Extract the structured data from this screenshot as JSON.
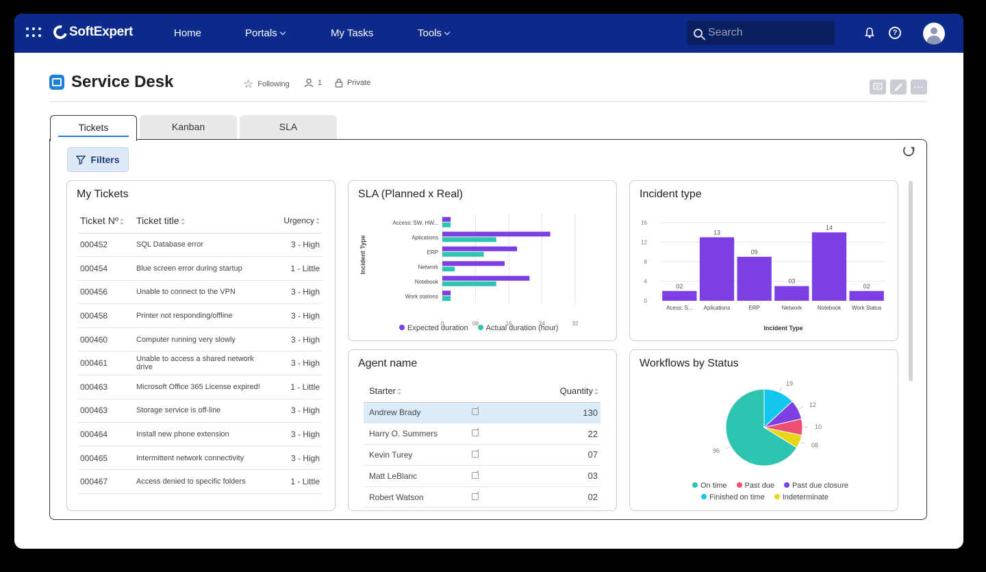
{
  "topbar": {
    "brand": "SoftExpert",
    "nav": [
      {
        "label": "Home",
        "has_menu": false
      },
      {
        "label": "Portals",
        "has_menu": true
      },
      {
        "label": "My Tasks",
        "has_menu": false
      },
      {
        "label": "Tools",
        "has_menu": true
      }
    ],
    "search_placeholder": "Search",
    "icons": [
      "apps-grid-icon",
      "bell-icon",
      "help-icon",
      "user-avatar-icon"
    ],
    "color": "#0b2a8a"
  },
  "header": {
    "title": "Service Desk",
    "following_label": "Following",
    "members_count": "1",
    "privacy_label": "Private"
  },
  "tabs": [
    {
      "label": "Tickets",
      "active": true
    },
    {
      "label": "Kanban",
      "active": false
    },
    {
      "label": "SLA",
      "active": false
    }
  ],
  "filters_label": "Filters",
  "my_tickets": {
    "title": "My Tickets",
    "columns": [
      "Ticket Nº",
      "Ticket title",
      "Urgency"
    ],
    "rows": [
      {
        "num": "000452",
        "title": "SQL Database error",
        "urgency": "3 - High"
      },
      {
        "num": "000454",
        "title": "Blue screen error during startup",
        "urgency": "1 - Little"
      },
      {
        "num": "000456",
        "title": "Unable to connect to the VPN",
        "urgency": "3 - High"
      },
      {
        "num": "000458",
        "title": "Printer not responding/offline",
        "urgency": "3 - High"
      },
      {
        "num": "000460",
        "title": "Computer running very slowly",
        "urgency": "3 - High"
      },
      {
        "num": "000461",
        "title": "Unable to access a shared network drive",
        "urgency": "3 - High"
      },
      {
        "num": "000463",
        "title": "Microsoft Office 365 License expired!",
        "urgency": "1 - Little"
      },
      {
        "num": "000463",
        "title": "Storage service is off-line",
        "urgency": "3 - High"
      },
      {
        "num": "000464",
        "title": "Install new phone extension",
        "urgency": "3 - High"
      },
      {
        "num": "000465",
        "title": "Intermittent network connectivity",
        "urgency": "3 - High"
      },
      {
        "num": "000467",
        "title": "Access denied to specific folders",
        "urgency": "1 - Little"
      }
    ]
  },
  "sla_card": {
    "title": "SLA (Planned x Real)"
  },
  "incident_card": {
    "title": "Incident type"
  },
  "agent_card": {
    "title": "Agent name",
    "columns": [
      "Starter",
      "Quantity"
    ],
    "rows": [
      {
        "name": "Andrew Brady",
        "qty": "130",
        "selected": true
      },
      {
        "name": "Harry O. Summers",
        "qty": "22",
        "selected": false
      },
      {
        "name": "Kevin Turey",
        "qty": "07",
        "selected": false
      },
      {
        "name": "Matt LeBlanc",
        "qty": "03",
        "selected": false
      },
      {
        "name": "Robert Watson",
        "qty": "02",
        "selected": false
      }
    ]
  },
  "workflow_card": {
    "title": "Workflows by Status"
  },
  "chart_data": [
    {
      "type": "bar",
      "orientation": "horizontal",
      "categories": [
        "Access: SW, HW...",
        "Aplications",
        "ERP",
        "Network",
        "Notebook",
        "Work stations"
      ],
      "series": [
        {
          "name": "Expected duration",
          "values": [
            2,
            26,
            18,
            15,
            21,
            2
          ],
          "color": "#7b3fe4"
        },
        {
          "name": "Actual duration (hour)",
          "values": [
            2,
            13,
            10,
            3,
            13,
            2
          ],
          "color": "#2ec4b0"
        }
      ],
      "ylabel": "Incident Type",
      "xticks": [
        "0",
        "08",
        "16",
        "24",
        "32"
      ],
      "xlim": [
        0,
        32
      ],
      "legend": "bottom"
    },
    {
      "type": "bar",
      "categories": [
        "Acess: S...",
        "Aplications",
        "ERP",
        "Network",
        "Notebook",
        "Work Status"
      ],
      "values": [
        2,
        13,
        9,
        3,
        14,
        2
      ],
      "data_labels": [
        "02",
        "13",
        "09",
        "03",
        "14",
        "02"
      ],
      "xlabel": "Incident Type",
      "yticks": [
        "0",
        "4",
        "8",
        "12",
        "16"
      ],
      "ylim": [
        0,
        16
      ],
      "color": "#7b3fe4"
    },
    {
      "type": "pie",
      "slices": [
        {
          "name": "On time",
          "value": 96,
          "label": "96",
          "color": "#2ec4b0"
        },
        {
          "name": "Finished on time",
          "value": 19,
          "label": "19",
          "color": "#12c6ee"
        },
        {
          "name": "Past due closure",
          "value": 12,
          "label": "12",
          "color": "#7b3fe4"
        },
        {
          "name": "Past due",
          "value": 10,
          "label": "10",
          "color": "#ee4f73"
        },
        {
          "name": "Indeterminate",
          "value": 8,
          "label": "08",
          "color": "#e8d615"
        }
      ],
      "legend_order": [
        "On time",
        "Past due",
        "Past due closure",
        "Finished on time",
        "Indeterminate"
      ],
      "legend": "bottom"
    }
  ]
}
